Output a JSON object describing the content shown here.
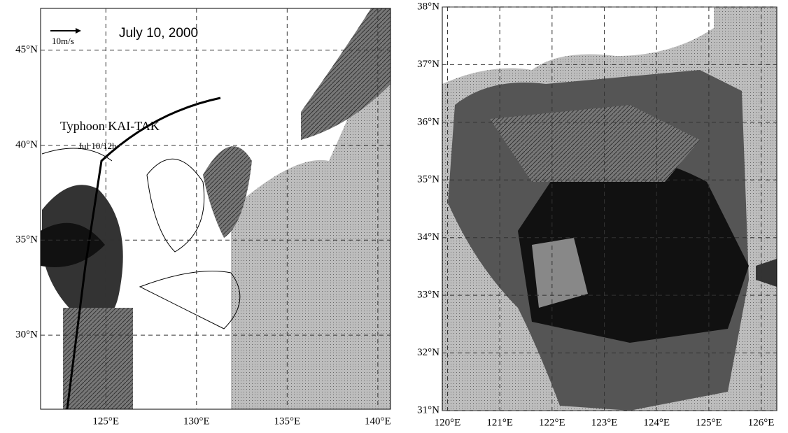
{
  "panels": [
    {
      "xlim": [
        121.4,
        140.7
      ],
      "ylim": [
        26.1,
        47.2
      ],
      "xticks": [
        {
          "value": 125,
          "label": "125°E"
        },
        {
          "value": 130,
          "label": "130°E"
        },
        {
          "value": 135,
          "label": "135°E"
        },
        {
          "value": 140,
          "label": "140°E"
        }
      ],
      "yticks": [
        {
          "value": 30,
          "label": "30°N"
        },
        {
          "value": 35,
          "label": "35°N"
        },
        {
          "value": 40,
          "label": "40°N"
        },
        {
          "value": 45,
          "label": "45°N"
        }
      ],
      "annotations": {
        "scale": "10m/s",
        "date": "July 10, 2000",
        "typhoon": "Typhoon KAI-TAK",
        "time": "Jul 10/12h"
      }
    },
    {
      "xlim": [
        119.9,
        126.3
      ],
      "ylim": [
        31,
        38
      ],
      "xticks": [
        {
          "value": 120,
          "label": "120°E"
        },
        {
          "value": 121,
          "label": "121°E"
        },
        {
          "value": 122,
          "label": "122°E"
        },
        {
          "value": 123,
          "label": "123°E"
        },
        {
          "value": 124,
          "label": "124°E"
        },
        {
          "value": 125,
          "label": "125°E"
        },
        {
          "value": 126,
          "label": "126°E"
        }
      ],
      "yticks": [
        {
          "value": 31,
          "label": "31°N"
        },
        {
          "value": 32,
          "label": "32°N"
        },
        {
          "value": 33,
          "label": "33°N"
        },
        {
          "value": 34,
          "label": "34°N"
        },
        {
          "value": 35,
          "label": "35°N"
        },
        {
          "value": 36,
          "label": "36°N"
        },
        {
          "value": 37,
          "label": "37°N"
        },
        {
          "value": 38,
          "label": "38°N"
        }
      ]
    }
  ]
}
